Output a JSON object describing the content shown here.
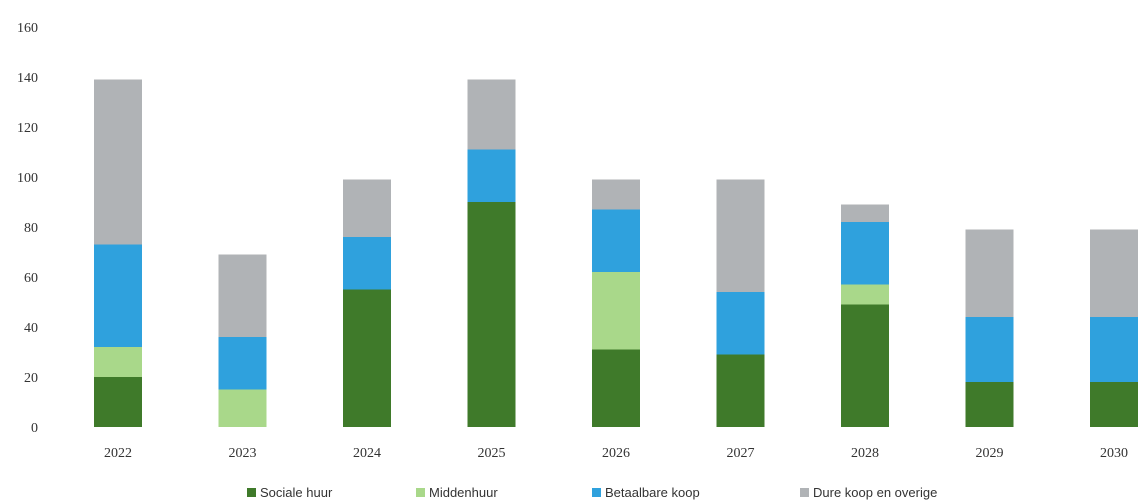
{
  "chart_data": {
    "type": "bar",
    "stacked": true,
    "title": "",
    "xlabel": "",
    "ylabel": "",
    "ylim": [
      0,
      160
    ],
    "yticks": [
      "0",
      "20",
      "40",
      "60",
      "80",
      "100",
      "120",
      "140",
      "160"
    ],
    "grid": false,
    "legend_position": "bottom",
    "categories": [
      "2022",
      "2023",
      "2024",
      "2025",
      "2026",
      "2027",
      "2028",
      "2029",
      "2030"
    ],
    "series": [
      {
        "name": "Sociale huur",
        "color": "#3f7a2a",
        "values": [
          20,
          0,
          55,
          90,
          31,
          29,
          49,
          18,
          18
        ]
      },
      {
        "name": "Middenhuur",
        "color": "#a9d88a",
        "values": [
          12,
          15,
          0,
          0,
          31,
          0,
          8,
          0,
          0
        ]
      },
      {
        "name": "Betaalbare koop",
        "color": "#2fa1dd",
        "values": [
          41,
          21,
          21,
          21,
          25,
          25,
          25,
          26,
          26
        ]
      },
      {
        "name": "Dure koop en overige",
        "color": "#b0b3b6",
        "values": [
          66,
          33,
          23,
          28,
          12,
          45,
          7,
          35,
          35
        ]
      }
    ]
  }
}
